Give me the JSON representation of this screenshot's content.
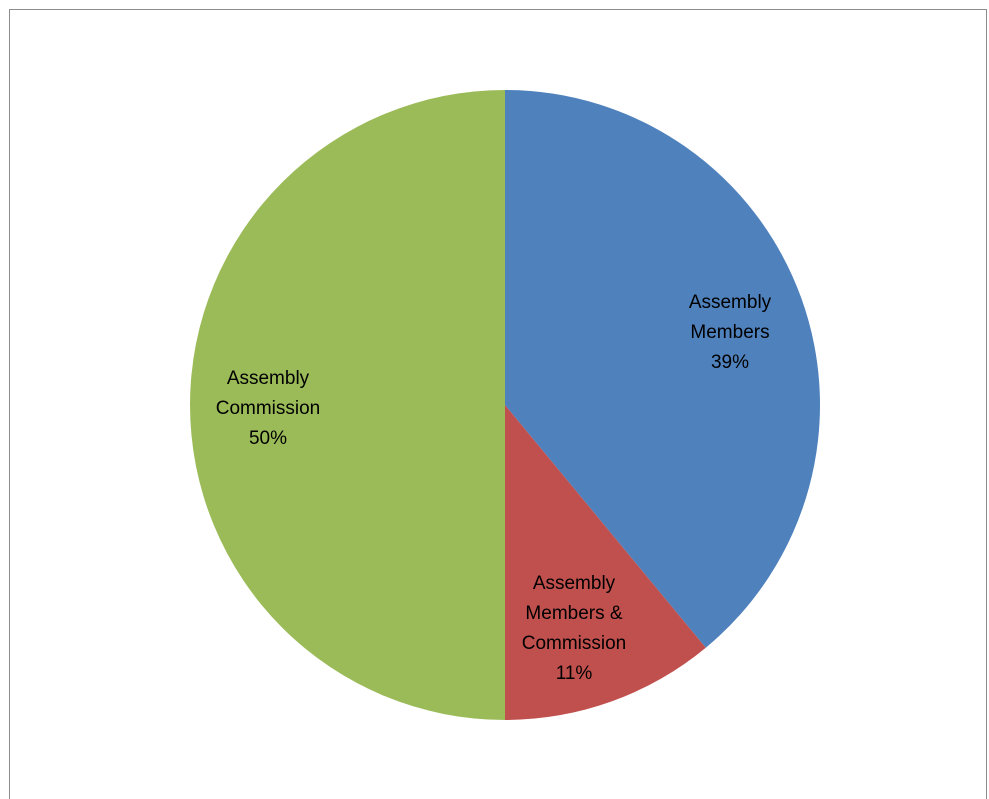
{
  "chart_data": {
    "type": "pie",
    "title": "",
    "slices": [
      {
        "label_lines": [
          "Assembly",
          "Members"
        ],
        "percent_label": "39%",
        "value": 39,
        "color": "#4F81BD"
      },
      {
        "label_lines": [
          "Assembly",
          "Members &",
          "Commission"
        ],
        "percent_label": "11%",
        "value": 11,
        "color": "#C0504D"
      },
      {
        "label_lines": [
          "Assembly",
          "Commission"
        ],
        "percent_label": "50%",
        "value": 50,
        "color": "#9BBB59"
      }
    ],
    "start_angle": "12 o'clock",
    "direction": "clockwise",
    "legend": "none",
    "data_labels": "inside, category name and percentage"
  }
}
